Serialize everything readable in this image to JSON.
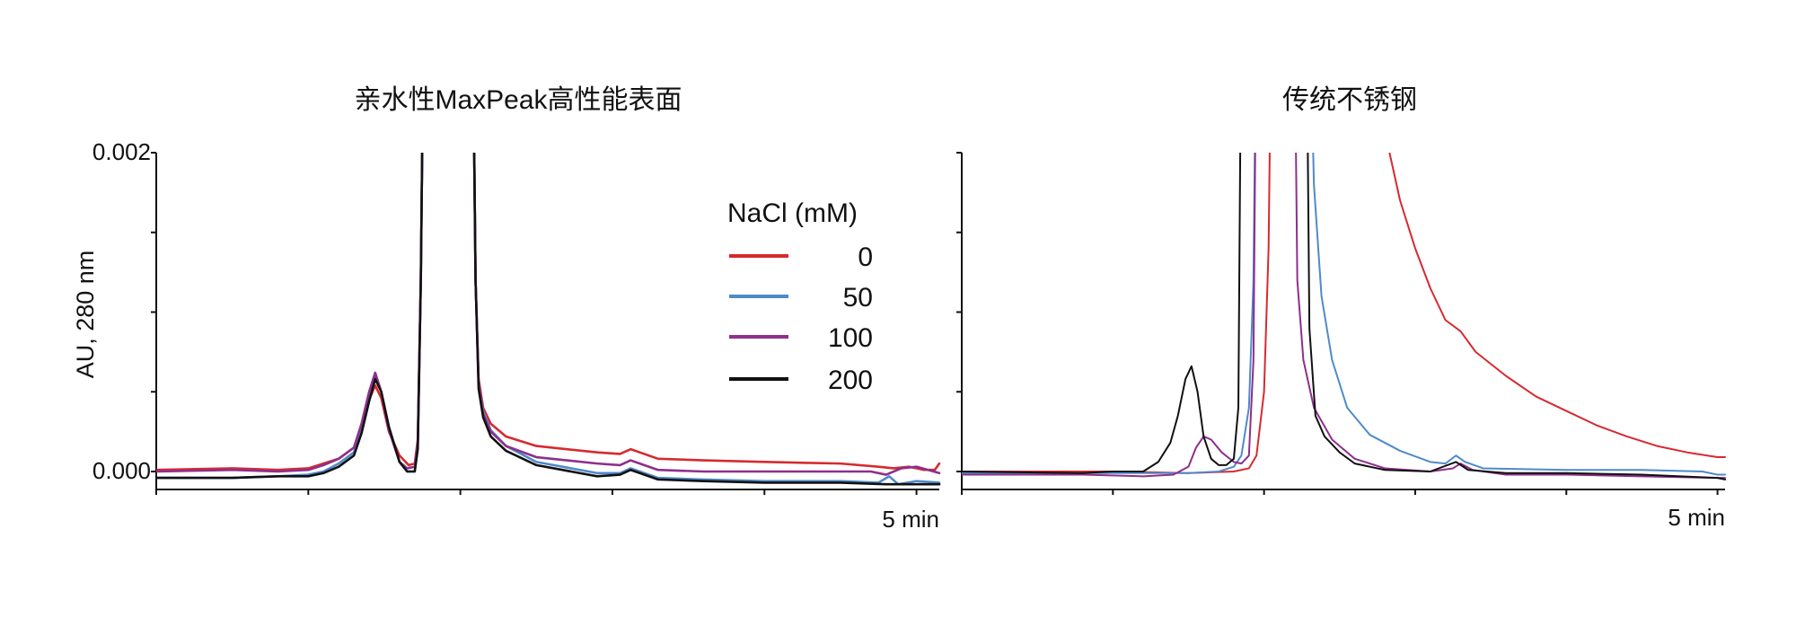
{
  "chart_data": [
    {
      "type": "line",
      "title": "亲水性MaxPeak高性能表面",
      "ylabel": "AU, 280 nm",
      "y_ticks": [
        "0.002",
        "0.000"
      ],
      "x_end_label": "5 min",
      "xlim": [
        0,
        5.15
      ],
      "ylim": [
        -0.0001,
        0.002
      ],
      "legend": {
        "title": "NaCl (mM)",
        "position": "top-right",
        "entries": [
          "0",
          "50",
          "100",
          "200"
        ]
      },
      "series": [
        {
          "name": "0",
          "color": "#d62a2f",
          "points": [
            [
              0,
              1e-05
            ],
            [
              0.5,
              2e-05
            ],
            [
              0.8,
              1e-05
            ],
            [
              1.0,
              2e-05
            ],
            [
              1.1,
              5e-05
            ],
            [
              1.2,
              8e-05
            ],
            [
              1.3,
              0.00015
            ],
            [
              1.35,
              0.00028
            ],
            [
              1.4,
              0.00045
            ],
            [
              1.44,
              0.00054
            ],
            [
              1.48,
              0.00046
            ],
            [
              1.53,
              0.00025
            ],
            [
              1.6,
              0.0001
            ],
            [
              1.66,
              4e-05
            ],
            [
              1.7,
              5e-05
            ],
            [
              1.72,
              0.0002
            ],
            [
              1.74,
              0.0012
            ],
            [
              1.76,
              0.003
            ],
            [
              2.08,
              0.003
            ],
            [
              2.1,
              0.0012
            ],
            [
              2.12,
              0.00058
            ],
            [
              2.15,
              0.0004
            ],
            [
              2.2,
              0.0003
            ],
            [
              2.3,
              0.00022
            ],
            [
              2.5,
              0.00016
            ],
            [
              2.9,
              0.00012
            ],
            [
              3.05,
              0.00011
            ],
            [
              3.12,
              0.00014
            ],
            [
              3.18,
              0.00012
            ],
            [
              3.3,
              8e-05
            ],
            [
              3.6,
              7e-05
            ],
            [
              4.0,
              6e-05
            ],
            [
              4.5,
              5e-05
            ],
            [
              4.75,
              3e-05
            ],
            [
              4.85,
              2e-05
            ],
            [
              4.95,
              3e-05
            ],
            [
              5.05,
              1e-05
            ],
            [
              5.12,
              1e-05
            ],
            [
              5.15,
              5e-05
            ]
          ]
        },
        {
          "name": "50",
          "color": "#4f8ac9",
          "points": [
            [
              0,
              -4e-05
            ],
            [
              0.5,
              -4e-05
            ],
            [
              0.8,
              -3e-05
            ],
            [
              1.0,
              -2e-05
            ],
            [
              1.1,
              0.0
            ],
            [
              1.2,
              5e-05
            ],
            [
              1.3,
              0.00012
            ],
            [
              1.35,
              0.00026
            ],
            [
              1.4,
              0.00047
            ],
            [
              1.44,
              0.0006
            ],
            [
              1.48,
              0.0005
            ],
            [
              1.53,
              0.00028
            ],
            [
              1.6,
              6e-05
            ],
            [
              1.65,
              0.0
            ],
            [
              1.7,
              0.0
            ],
            [
              1.72,
              0.00015
            ],
            [
              1.74,
              0.0012
            ],
            [
              1.76,
              0.003
            ],
            [
              2.08,
              0.003
            ],
            [
              2.1,
              0.0012
            ],
            [
              2.12,
              0.00055
            ],
            [
              2.15,
              0.00038
            ],
            [
              2.2,
              0.00026
            ],
            [
              2.3,
              0.00016
            ],
            [
              2.5,
              6e-05
            ],
            [
              2.9,
              -1e-05
            ],
            [
              3.05,
              -1e-05
            ],
            [
              3.12,
              2e-05
            ],
            [
              3.18,
              0.0
            ],
            [
              3.3,
              -4e-05
            ],
            [
              3.6,
              -5e-05
            ],
            [
              4.0,
              -6e-05
            ],
            [
              4.5,
              -6e-05
            ],
            [
              4.75,
              -7e-05
            ],
            [
              4.82,
              -3e-05
            ],
            [
              4.88,
              -8e-05
            ],
            [
              5.0,
              -6e-05
            ],
            [
              5.15,
              -7e-05
            ]
          ]
        },
        {
          "name": "100",
          "color": "#8e2f8c",
          "points": [
            [
              0,
              0.0
            ],
            [
              0.5,
              1e-05
            ],
            [
              0.8,
              0.0
            ],
            [
              1.0,
              1e-05
            ],
            [
              1.1,
              4e-05
            ],
            [
              1.2,
              8e-05
            ],
            [
              1.3,
              0.00015
            ],
            [
              1.35,
              0.0003
            ],
            [
              1.4,
              0.0005
            ],
            [
              1.44,
              0.00062
            ],
            [
              1.48,
              0.0005
            ],
            [
              1.53,
              0.00026
            ],
            [
              1.6,
              6e-05
            ],
            [
              1.65,
              2e-05
            ],
            [
              1.7,
              3e-05
            ],
            [
              1.72,
              0.00018
            ],
            [
              1.74,
              0.0012
            ],
            [
              1.76,
              0.003
            ],
            [
              2.08,
              0.003
            ],
            [
              2.1,
              0.0012
            ],
            [
              2.12,
              0.00056
            ],
            [
              2.15,
              0.00036
            ],
            [
              2.2,
              0.00025
            ],
            [
              2.3,
              0.00016
            ],
            [
              2.5,
              9e-05
            ],
            [
              2.9,
              5e-05
            ],
            [
              3.05,
              4e-05
            ],
            [
              3.12,
              7e-05
            ],
            [
              3.18,
              5e-05
            ],
            [
              3.3,
              1e-05
            ],
            [
              3.6,
              0.0
            ],
            [
              4.0,
              0.0
            ],
            [
              4.5,
              0.0
            ],
            [
              4.7,
              0.0
            ],
            [
              4.8,
              -2e-05
            ],
            [
              4.9,
              2e-05
            ],
            [
              5.0,
              3e-05
            ],
            [
              5.15,
              -1e-05
            ]
          ]
        },
        {
          "name": "200",
          "color": "#111111",
          "points": [
            [
              0,
              -4e-05
            ],
            [
              0.5,
              -4e-05
            ],
            [
              0.8,
              -3e-05
            ],
            [
              1.0,
              -3e-05
            ],
            [
              1.1,
              -1e-05
            ],
            [
              1.2,
              3e-05
            ],
            [
              1.3,
              0.0001
            ],
            [
              1.35,
              0.00024
            ],
            [
              1.4,
              0.00044
            ],
            [
              1.44,
              0.00058
            ],
            [
              1.48,
              0.0005
            ],
            [
              1.53,
              0.00028
            ],
            [
              1.6,
              6e-05
            ],
            [
              1.65,
              0.0
            ],
            [
              1.7,
              0.0
            ],
            [
              1.72,
              0.00014
            ],
            [
              1.74,
              0.0012
            ],
            [
              1.76,
              0.003
            ],
            [
              2.08,
              0.003
            ],
            [
              2.1,
              0.0012
            ],
            [
              2.12,
              0.00052
            ],
            [
              2.15,
              0.00034
            ],
            [
              2.2,
              0.00022
            ],
            [
              2.3,
              0.00013
            ],
            [
              2.5,
              4e-05
            ],
            [
              2.9,
              -3e-05
            ],
            [
              3.05,
              -2e-05
            ],
            [
              3.12,
              1e-05
            ],
            [
              3.18,
              -1e-05
            ],
            [
              3.3,
              -5e-05
            ],
            [
              3.6,
              -6e-05
            ],
            [
              4.0,
              -7e-05
            ],
            [
              4.5,
              -7e-05
            ],
            [
              4.8,
              -8e-05
            ],
            [
              5.0,
              -8e-05
            ],
            [
              5.15,
              -8e-05
            ]
          ]
        }
      ]
    },
    {
      "type": "line",
      "title": "传统不锈钢",
      "x_end_label": "5 min",
      "xlim": [
        0,
        5.05
      ],
      "ylim": [
        -0.0001,
        0.002
      ],
      "series": [
        {
          "name": "0",
          "color": "#d62a2f",
          "points": [
            [
              0,
              0.0
            ],
            [
              1.0,
              0.0
            ],
            [
              1.5,
              -1e-05
            ],
            [
              1.8,
              0.0
            ],
            [
              1.9,
              2e-05
            ],
            [
              1.95,
              0.0001
            ],
            [
              2.0,
              0.0005
            ],
            [
              2.03,
              0.0014
            ],
            [
              2.05,
              0.003
            ],
            [
              2.8,
              0.003
            ],
            [
              2.83,
              0.002
            ],
            [
              2.9,
              0.0017
            ],
            [
              3.0,
              0.0014
            ],
            [
              3.1,
              0.00115
            ],
            [
              3.2,
              0.00095
            ],
            [
              3.3,
              0.00088
            ],
            [
              3.4,
              0.00075
            ],
            [
              3.6,
              0.0006
            ],
            [
              3.8,
              0.00047
            ],
            [
              4.0,
              0.00038
            ],
            [
              4.2,
              0.00029
            ],
            [
              4.4,
              0.00022
            ],
            [
              4.6,
              0.00016
            ],
            [
              4.8,
              0.00012
            ],
            [
              5.0,
              9e-05
            ],
            [
              5.05,
              9e-05
            ]
          ]
        },
        {
          "name": "50",
          "color": "#4f8ac9",
          "points": [
            [
              0,
              -1e-05
            ],
            [
              1.0,
              -1e-05
            ],
            [
              1.5,
              -1e-05
            ],
            [
              1.7,
              0.0
            ],
            [
              1.8,
              3e-05
            ],
            [
              1.85,
              0.0001
            ],
            [
              1.9,
              0.0004
            ],
            [
              1.93,
              0.0012
            ],
            [
              1.95,
              0.003
            ],
            [
              2.3,
              0.003
            ],
            [
              2.33,
              0.0018
            ],
            [
              2.38,
              0.0011
            ],
            [
              2.45,
              0.0007
            ],
            [
              2.55,
              0.0004
            ],
            [
              2.7,
              0.00023
            ],
            [
              2.9,
              0.00013
            ],
            [
              3.1,
              6e-05
            ],
            [
              3.2,
              5e-05
            ],
            [
              3.27,
              0.0001
            ],
            [
              3.33,
              6e-05
            ],
            [
              3.45,
              2e-05
            ],
            [
              4.0,
              1e-05
            ],
            [
              4.5,
              1e-05
            ],
            [
              4.9,
              0.0
            ],
            [
              5.0,
              -2e-05
            ],
            [
              5.05,
              -2e-05
            ]
          ]
        },
        {
          "name": "100",
          "color": "#8e2f8c",
          "points": [
            [
              0,
              -2e-05
            ],
            [
              0.8,
              -2e-05
            ],
            [
              1.2,
              -3e-05
            ],
            [
              1.4,
              -2e-05
            ],
            [
              1.5,
              3e-05
            ],
            [
              1.55,
              0.00015
            ],
            [
              1.6,
              0.00022
            ],
            [
              1.65,
              0.0002
            ],
            [
              1.72,
              0.00012
            ],
            [
              1.8,
              6e-05
            ],
            [
              1.85,
              5e-05
            ],
            [
              1.9,
              0.0001
            ],
            [
              1.93,
              0.0007
            ],
            [
              1.95,
              0.003
            ],
            [
              2.2,
              0.003
            ],
            [
              2.22,
              0.0012
            ],
            [
              2.26,
              0.0007
            ],
            [
              2.33,
              0.0004
            ],
            [
              2.45,
              0.0002
            ],
            [
              2.6,
              8e-05
            ],
            [
              2.8,
              2e-05
            ],
            [
              3.1,
              0.0
            ],
            [
              3.25,
              2e-05
            ],
            [
              3.3,
              5e-05
            ],
            [
              3.38,
              1e-05
            ],
            [
              3.6,
              -2e-05
            ],
            [
              4.0,
              -2e-05
            ],
            [
              4.5,
              -3e-05
            ],
            [
              5.0,
              -4e-05
            ],
            [
              5.05,
              -4e-05
            ]
          ]
        },
        {
          "name": "200",
          "color": "#111111",
          "points": [
            [
              0,
              0.0
            ],
            [
              0.8,
              -1e-05
            ],
            [
              1.0,
              0.0
            ],
            [
              1.2,
              0.0
            ],
            [
              1.3,
              6e-05
            ],
            [
              1.38,
              0.00018
            ],
            [
              1.43,
              0.00035
            ],
            [
              1.48,
              0.00058
            ],
            [
              1.52,
              0.00066
            ],
            [
              1.56,
              0.0005
            ],
            [
              1.6,
              0.00022
            ],
            [
              1.65,
              8e-05
            ],
            [
              1.7,
              4e-05
            ],
            [
              1.75,
              4e-05
            ],
            [
              1.8,
              8e-05
            ],
            [
              1.83,
              0.0004
            ],
            [
              1.85,
              0.003
            ],
            [
              2.28,
              0.003
            ],
            [
              2.3,
              0.0009
            ],
            [
              2.34,
              0.00035
            ],
            [
              2.4,
              0.00022
            ],
            [
              2.5,
              0.00012
            ],
            [
              2.6,
              5e-05
            ],
            [
              2.8,
              1e-05
            ],
            [
              3.1,
              0.0
            ],
            [
              3.27,
              6e-05
            ],
            [
              3.35,
              1e-05
            ],
            [
              3.6,
              -1e-05
            ],
            [
              4.0,
              -1e-05
            ],
            [
              4.5,
              -2e-05
            ],
            [
              5.0,
              -4e-05
            ],
            [
              5.05,
              -5e-05
            ]
          ]
        }
      ]
    }
  ]
}
